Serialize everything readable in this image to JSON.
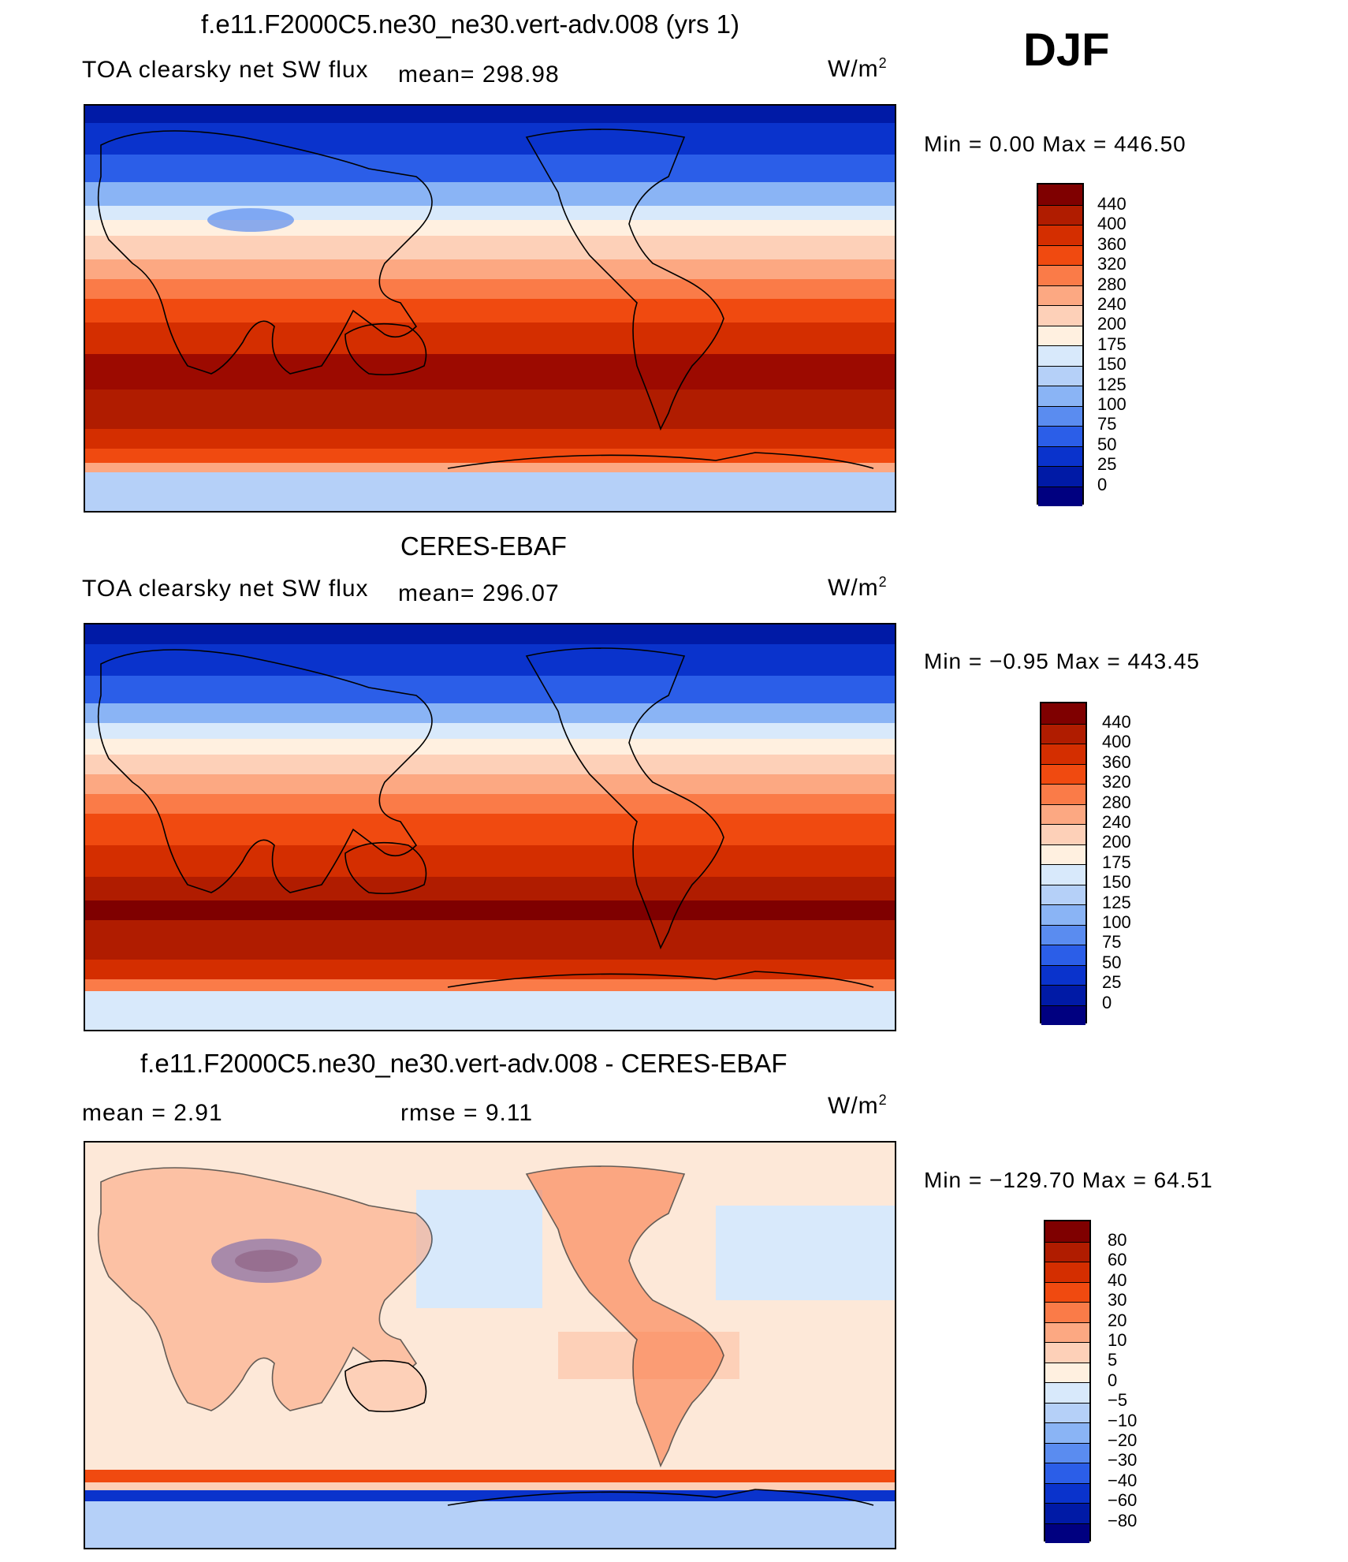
{
  "season": "DJF",
  "units_base": "W/m",
  "units_exp": "2",
  "panels": [
    {
      "title": "f.e11.F2000C5.ne30_ne30.vert-adv.008 (yrs 1)",
      "left_label": "TOA clearsky net SW flux",
      "center_label": "mean=  298.98",
      "minmax": "Min =    0.00 Max =  446.50",
      "type": "absolute"
    },
    {
      "title": "CERES-EBAF",
      "left_label": "TOA clearsky net SW flux",
      "center_label": "mean=  296.07",
      "minmax": "Min =   −0.95 Max =  443.45",
      "type": "absolute"
    },
    {
      "title": "f.e11.F2000C5.ne30_ne30.vert-adv.008 - CERES-EBAF",
      "left_label": "mean =    2.91",
      "center_label": "rmse =    9.11",
      "minmax": "Min = −129.70 Max =   64.51",
      "type": "difference"
    }
  ],
  "colorbars": {
    "absolute": {
      "labels": [
        "440",
        "400",
        "360",
        "320",
        "280",
        "240",
        "200",
        "175",
        "150",
        "125",
        "100",
        "75",
        "50",
        "25",
        "0"
      ],
      "colors": [
        "#7f0000",
        "#b01c00",
        "#d42e00",
        "#f04a10",
        "#fa7b48",
        "#fca882",
        "#fdd0b8",
        "#fff0e0",
        "#d8e9fb",
        "#b5d0f8",
        "#8ab4f5",
        "#5a8cf0",
        "#2b5ee8",
        "#0a33cc",
        "#001aa6",
        "#000080"
      ]
    },
    "difference": {
      "labels": [
        "80",
        "60",
        "40",
        "30",
        "20",
        "10",
        "5",
        "0",
        "−5",
        "−10",
        "−20",
        "−30",
        "−40",
        "−60",
        "−80"
      ],
      "colors": [
        "#7f0000",
        "#b01c00",
        "#d42e00",
        "#f04a10",
        "#fa7b48",
        "#fca882",
        "#fdd0b8",
        "#fff0e0",
        "#d8e9fb",
        "#b5d0f8",
        "#8ab4f5",
        "#5a8cf0",
        "#2b5ee8",
        "#0a33cc",
        "#001aa6",
        "#000080"
      ]
    }
  }
}
